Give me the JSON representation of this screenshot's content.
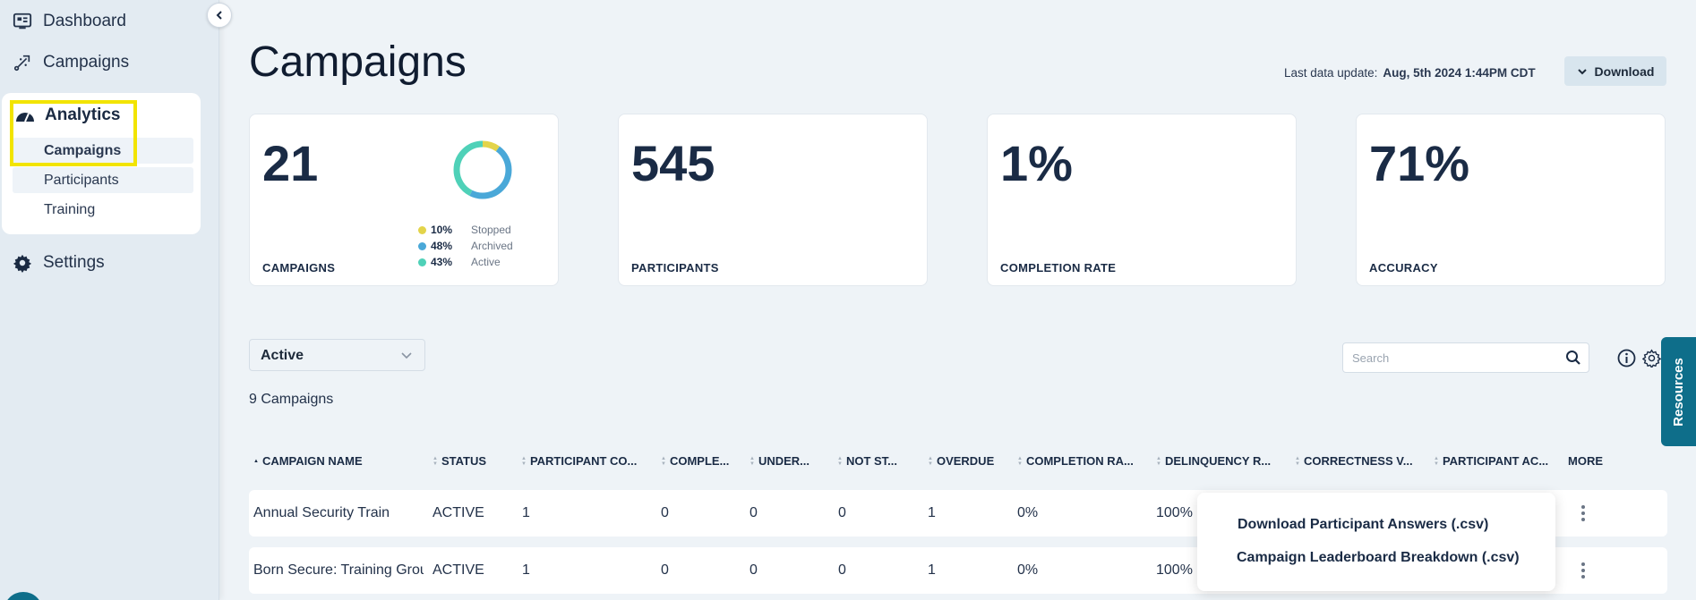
{
  "sidebar": {
    "dashboard": "Dashboard",
    "campaigns": "Campaigns",
    "analytics": "Analytics",
    "analytics_items": [
      "Campaigns",
      "Participants",
      "Training"
    ],
    "settings": "Settings"
  },
  "header": {
    "title": "Campaigns",
    "last_update_label": "Last data update:",
    "last_update_value": "Aug, 5th 2024 1:44PM CDT",
    "download_label": "Download"
  },
  "stats": [
    {
      "value": "21",
      "label": "CAMPAIGNS"
    },
    {
      "value": "545",
      "label": "PARTICIPANTS"
    },
    {
      "value": "1%",
      "label": "COMPLETION RATE"
    },
    {
      "value": "71%",
      "label": "ACCURACY"
    }
  ],
  "donut": {
    "legend": [
      {
        "pct": "10%",
        "name": "Stopped",
        "color": "#e3d44a",
        "value": 10
      },
      {
        "pct": "48%",
        "name": "Archived",
        "color": "#4aa8d8",
        "value": 48
      },
      {
        "pct": "43%",
        "name": "Active",
        "color": "#4fd1b8",
        "value": 43
      }
    ]
  },
  "filter": {
    "selected": "Active"
  },
  "search": {
    "placeholder": "Search"
  },
  "count_text": "9 Campaigns",
  "table": {
    "headers": [
      "CAMPAIGN NAME",
      "STATUS",
      "PARTICIPANT CO...",
      "COMPLE...",
      "UNDER...",
      "NOT ST...",
      "OVERDUE",
      "COMPLETION RA...",
      "DELINQUENCY R...",
      "CORRECTNESS V...",
      "PARTICIPANT AC...",
      "MORE"
    ],
    "rows": [
      {
        "name": "Annual Security Training",
        "status": "ACTIVE",
        "participants": "1",
        "completed": "0",
        "underway": "0",
        "not_started": "0",
        "overdue": "1",
        "completion_rate": "0%",
        "delinquency": "100%"
      },
      {
        "name": "Born Secure: Training Group",
        "status": "ACTIVE",
        "participants": "1",
        "completed": "0",
        "underway": "0",
        "not_started": "0",
        "overdue": "1",
        "completion_rate": "0%",
        "delinquency": "100%"
      }
    ]
  },
  "menu": {
    "items": [
      "Download Participant Answers (.csv)",
      "Campaign Leaderboard Breakdown (.csv)"
    ]
  },
  "resources_label": "Resources",
  "colors": {
    "highlight": "#f2e400",
    "accent": "#0e6e8a"
  }
}
